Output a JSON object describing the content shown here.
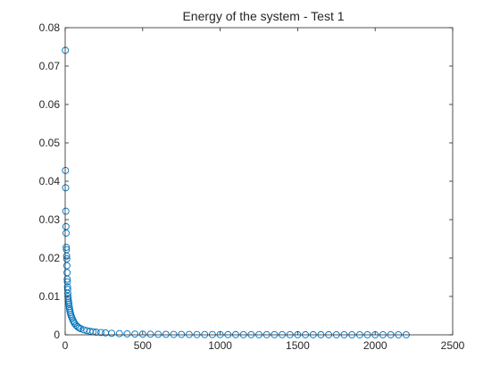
{
  "chart_data": {
    "type": "scatter",
    "title": "Energy of the system - Test 1",
    "xlabel": "",
    "ylabel": "",
    "xlim": [
      0,
      2500
    ],
    "ylim": [
      0,
      0.08
    ],
    "xticks": [
      0,
      500,
      1000,
      1500,
      2000,
      2500
    ],
    "yticks": [
      0,
      0.01,
      0.02,
      0.03,
      0.04,
      0.05,
      0.06,
      0.07,
      0.08
    ],
    "xtick_labels": [
      "0",
      "500",
      "1000",
      "1500",
      "2000",
      "2500"
    ],
    "ytick_labels": [
      "0",
      "0.01",
      "0.02",
      "0.03",
      "0.04",
      "0.05",
      "0.06",
      "0.07",
      "0.08"
    ],
    "grid": false,
    "legend": "none",
    "marker": "open-circle",
    "color": "#0072BD",
    "series": [
      {
        "x": [
          1,
          2,
          3,
          4,
          5,
          6,
          7,
          8,
          9,
          10,
          11,
          12,
          13,
          14,
          15,
          16,
          17,
          18,
          19,
          20,
          22,
          24,
          26,
          28,
          30,
          33,
          36,
          40,
          45,
          50,
          55,
          60,
          70,
          80,
          90,
          100,
          120,
          140,
          160,
          180,
          200,
          230,
          260,
          300,
          350,
          400,
          450,
          500,
          550,
          600,
          650,
          700,
          750,
          800,
          850,
          900,
          950,
          1000,
          1050,
          1100,
          1150,
          1200,
          1250,
          1300,
          1350,
          1400,
          1450,
          1500,
          1550,
          1600,
          1650,
          1700,
          1750,
          1800,
          1850,
          1900,
          1950,
          2000,
          2050,
          2100,
          2150,
          2200
        ],
        "y": [
          0.0741,
          0.0428,
          0.0383,
          0.0322,
          0.0282,
          0.0265,
          0.0228,
          0.0222,
          0.0205,
          0.0198,
          0.018,
          0.0162,
          0.0145,
          0.0138,
          0.0125,
          0.0118,
          0.0108,
          0.01,
          0.0095,
          0.009,
          0.0085,
          0.008,
          0.0074,
          0.0068,
          0.0063,
          0.0058,
          0.0053,
          0.0048,
          0.0043,
          0.0038,
          0.0034,
          0.003,
          0.0025,
          0.0021,
          0.0018,
          0.0016,
          0.0013,
          0.0011,
          0.0009,
          0.0008,
          0.0007,
          0.0006,
          0.0005,
          0.0004,
          0.0003,
          0.00025,
          0.0002,
          0.00018,
          0.00015,
          0.00013,
          0.00012,
          0.0001,
          0.0001,
          9e-05,
          8e-05,
          8e-05,
          7e-05,
          7e-05,
          6e-05,
          6e-05,
          5e-05,
          5e-05,
          5e-05,
          4e-05,
          4e-05,
          4e-05,
          4e-05,
          3e-05,
          3e-05,
          3e-05,
          3e-05,
          3e-05,
          2e-05,
          2e-05,
          2e-05,
          2e-05,
          2e-05,
          2e-05,
          2e-05,
          2e-05,
          1e-05,
          1e-05
        ]
      }
    ]
  }
}
